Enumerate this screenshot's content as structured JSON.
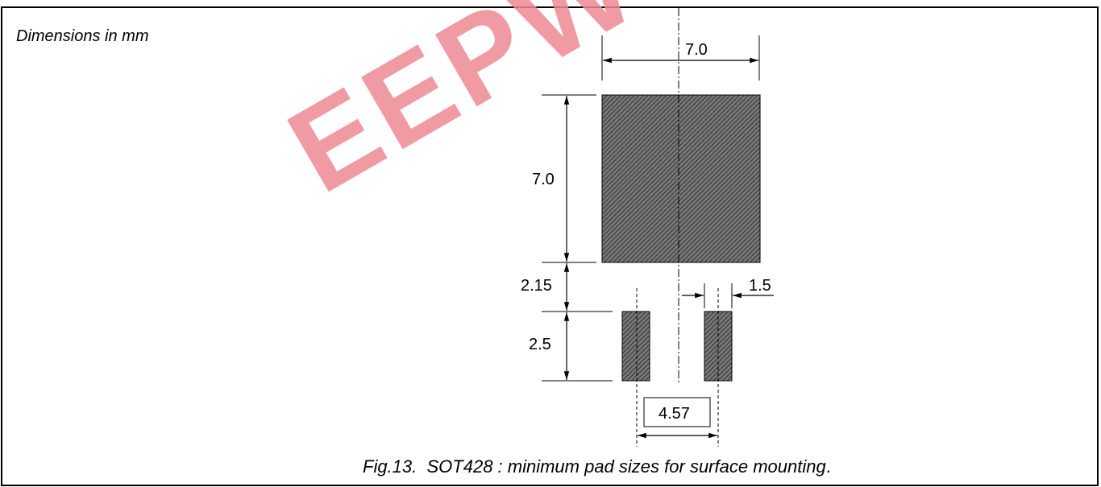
{
  "note": "Dimensions in mm",
  "caption": {
    "figure": "Fig.13.",
    "text": "SOT428 : minimum pad sizes for surface mounting",
    "end": "."
  },
  "watermark": {
    "text": "EEPW",
    "color": "#ee8a95"
  },
  "dimensions": {
    "top_width": "7.0",
    "pad_height": "7.0",
    "gap": "2.15",
    "small_pad_height": "2.5",
    "small_pad_width": "1.5",
    "pitch": "4.57"
  },
  "colors": {
    "pad_hatch": "#555555",
    "line": "#000000"
  }
}
